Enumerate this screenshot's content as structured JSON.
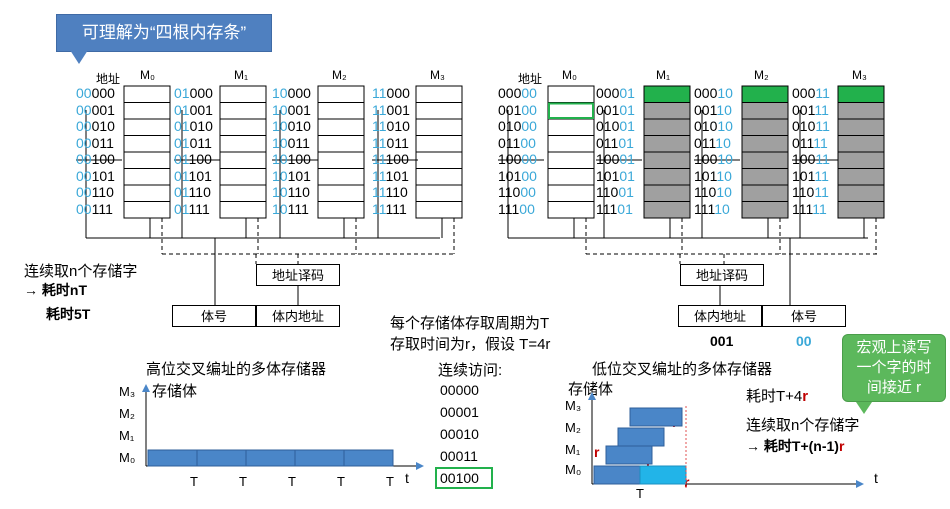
{
  "callouts": {
    "top_left": "可理解为“四根内存条”",
    "bottom_right": [
      "宏观上读写",
      "一个字的时",
      "间接近 r"
    ]
  },
  "left_diagram": {
    "addr_header": "地址",
    "modules": [
      "M₀",
      "M₁",
      "M₂",
      "M₃"
    ],
    "module_prefixes": [
      "00",
      "01",
      "10",
      "11"
    ],
    "suffixes": [
      "000",
      "001",
      "010",
      "011",
      "100",
      "101",
      "110",
      "111"
    ],
    "decoder": "地址译码",
    "reg_left": "体号",
    "reg_right": "体内地址"
  },
  "right_diagram": {
    "addr_header": "地址",
    "modules": [
      "M₀",
      "M₁",
      "M₂",
      "M₃"
    ],
    "prefixes": [
      "000",
      "001",
      "010",
      "011",
      "100",
      "101",
      "110",
      "111"
    ],
    "module_suffixes": [
      "00",
      "01",
      "10",
      "11"
    ],
    "decoder": "地址译码",
    "reg_left": "体内地址",
    "reg_right": "体号",
    "reg_left_value": "001",
    "reg_right_value": "00"
  },
  "left_notes": {
    "line1": "连续取n个存储字",
    "line2": "→ 耗时nT",
    "line3": "耗时5T"
  },
  "center_notes": {
    "line1": "每个存储体存取周期为T",
    "line2": "存取时间为r，假设 T=4r"
  },
  "bottom_left": {
    "title": "高位交叉编址的多体存储器",
    "axis_label": "存储体",
    "y_labels": [
      "M₃",
      "M₂",
      "M₁",
      "M₀"
    ],
    "t_labels": [
      "T",
      "T",
      "T",
      "T",
      "T"
    ],
    "t_axis": "t"
  },
  "sequence": {
    "title": "连续访问:",
    "items": [
      "00000",
      "00001",
      "00010",
      "00011",
      "00100"
    ]
  },
  "bottom_right": {
    "title": "低位交叉编址的多体存储器",
    "axis_label": "存储体",
    "y_labels": [
      "M₃",
      "M₂",
      "M₁",
      "M₀"
    ],
    "r_label": "r",
    "t_label": "T",
    "t_axis": "t",
    "time_note_prefix": "耗时T+4",
    "time_note_r": "r",
    "note1": "连续取n个存储字",
    "note2_prefix": "→ 耗时T+(n-1)",
    "note2_r": "r"
  },
  "colors": {
    "blue_digits": "#3aa8d8",
    "green_cell": "#22b14c",
    "gray_cell": "#a0a0a0",
    "bar_blue": "#4a86c8",
    "bar_cyan": "#22b4e8",
    "red_r": "#c00000",
    "highlight_green": "#22b14c"
  }
}
